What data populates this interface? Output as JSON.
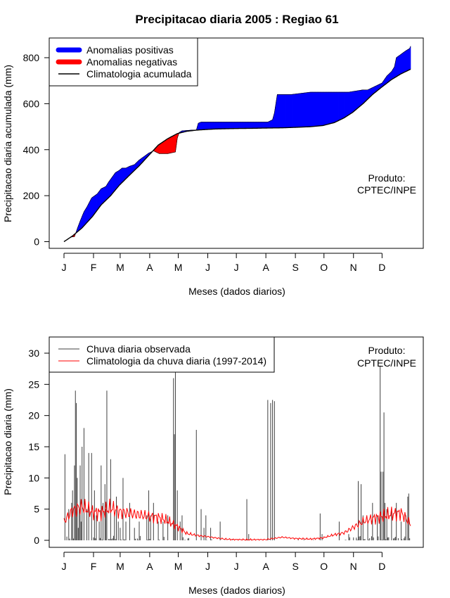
{
  "figure": {
    "title": "Precipitacao diaria 2005 : Regiao 61",
    "x_tick_labels": [
      "J",
      "F",
      "M",
      "A",
      "M",
      "J",
      "J",
      "A",
      "S",
      "O",
      "N",
      "D"
    ],
    "xlabel": "Meses (dados diarios)",
    "credit_line1": "Produto:",
    "credit_line2": "CPTEC/INPE"
  },
  "colors": {
    "positive": "#0000ff",
    "negative": "#ff0000",
    "climatology_line": "#000000",
    "observed_bars": "#404040",
    "climatology_daily": "#ff0000"
  },
  "chart_data": [
    {
      "type": "area",
      "ylabel": "Precipitacao diaria acumulada (mm)",
      "ylim": [
        0,
        850
      ],
      "xlim": [
        1,
        365
      ],
      "y_ticks": [
        0,
        200,
        400,
        600,
        800
      ],
      "legend": {
        "placement": "top-left",
        "entries": [
          "Anomalias positivas",
          "Anomalias negativas",
          "Climatologia acumulada"
        ]
      },
      "climatology_accumulated": {
        "day": [
          1,
          10,
          20,
          31,
          40,
          50,
          59,
          70,
          80,
          90,
          100,
          110,
          120,
          130,
          140,
          151,
          160,
          170,
          181,
          200,
          212,
          230,
          243,
          260,
          273,
          285,
          295,
          304,
          315,
          325,
          334,
          345,
          355,
          365
        ],
        "value": [
          0,
          25,
          60,
          110,
          160,
          200,
          245,
          290,
          330,
          375,
          420,
          448,
          470,
          480,
          485,
          488,
          490,
          491,
          492,
          493,
          494,
          495,
          497,
          500,
          505,
          518,
          538,
          562,
          600,
          640,
          670,
          705,
          730,
          750
        ]
      },
      "observed_accumulated": {
        "day": [
          1,
          8,
          12,
          16,
          18,
          22,
          25,
          30,
          36,
          40,
          45,
          48,
          55,
          59,
          62,
          66,
          70,
          75,
          80,
          85,
          90,
          95,
          101,
          110,
          118,
          120,
          122,
          125,
          135,
          140,
          142,
          145,
          150,
          160,
          175,
          195,
          215,
          220,
          222,
          225,
          230,
          240,
          260,
          275,
          285,
          300,
          315,
          320,
          335,
          340,
          345,
          348,
          350,
          360,
          364,
          365
        ],
        "value": [
          0,
          20,
          22,
          68,
          90,
          130,
          150,
          190,
          208,
          230,
          240,
          260,
          300,
          310,
          320,
          320,
          328,
          335,
          355,
          370,
          385,
          395,
          383,
          383,
          390,
          450,
          475,
          482,
          485,
          485,
          515,
          520,
          520,
          520,
          520,
          520,
          520,
          530,
          560,
          640,
          640,
          640,
          650,
          650,
          650,
          650,
          660,
          660,
          690,
          720,
          740,
          760,
          800,
          830,
          840,
          850
        ]
      }
    },
    {
      "type": "bar",
      "ylabel": "Precipitacao diaria (mm)",
      "ylim": [
        0,
        30
      ],
      "xlim": [
        1,
        365
      ],
      "y_ticks": [
        0,
        5,
        10,
        15,
        20,
        25,
        30
      ],
      "legend": {
        "placement": "top-left",
        "entries": [
          "Chuva diaria observada",
          "Climatologia da chuva diaria (1997-2014)"
        ]
      },
      "observed_peaks": {
        "day": [
          2,
          6,
          9,
          10,
          12,
          13,
          14,
          15,
          16,
          17,
          18,
          19,
          20,
          22,
          25,
          27,
          30,
          33,
          35,
          38,
          40,
          42,
          44,
          45,
          46,
          50,
          54,
          56,
          58,
          60,
          63,
          66,
          70,
          75,
          80,
          88,
          90,
          92,
          95,
          100,
          105,
          110,
          116,
          117,
          118,
          120,
          123,
          125,
          140,
          145,
          148,
          150,
          155,
          165,
          193,
          195,
          215,
          218,
          220,
          222,
          270,
          272,
          290,
          300,
          310,
          313,
          315,
          320,
          325,
          330,
          333,
          334,
          336,
          337,
          338,
          340,
          345,
          350,
          355,
          360,
          362,
          363
        ],
        "value": [
          13.8,
          5,
          6,
          8,
          12,
          24,
          22,
          10,
          2,
          5,
          12,
          3,
          15,
          18,
          5,
          14,
          14,
          8,
          4,
          3,
          12,
          6,
          9,
          5,
          24,
          13,
          4,
          7,
          3,
          2,
          10,
          3,
          6,
          2,
          3,
          4,
          8,
          4,
          6,
          3,
          3,
          4,
          26,
          17,
          27,
          8,
          3,
          4,
          17.7,
          5,
          2,
          4,
          2,
          3,
          6.6,
          1,
          22.5,
          22,
          22.5,
          22.3,
          4.3,
          1,
          3,
          1,
          9.5,
          9,
          4,
          3,
          6,
          4,
          28,
          11,
          11,
          20.5,
          6,
          5,
          5,
          6,
          3,
          4,
          7,
          7.5
        ]
      },
      "climatology_daily": {
        "day": [
          1,
          10,
          20,
          31,
          40,
          50,
          59,
          70,
          80,
          90,
          100,
          110,
          120,
          130,
          140,
          151,
          160,
          170,
          181,
          200,
          212,
          230,
          243,
          260,
          273,
          285,
          295,
          304,
          315,
          325,
          334,
          345,
          355,
          365
        ],
        "value": [
          3,
          4.8,
          5.4,
          4.5,
          4.4,
          5.2,
          4.6,
          4.3,
          4.1,
          3.8,
          3.7,
          3.1,
          2.2,
          1.1,
          0.8,
          0.6,
          0.4,
          0.2,
          0.1,
          0.1,
          0.1,
          0.5,
          0.3,
          0.2,
          0.4,
          0.9,
          1.2,
          2.0,
          3.0,
          3.5,
          3.8,
          4.2,
          4.4,
          2.6
        ]
      }
    }
  ]
}
